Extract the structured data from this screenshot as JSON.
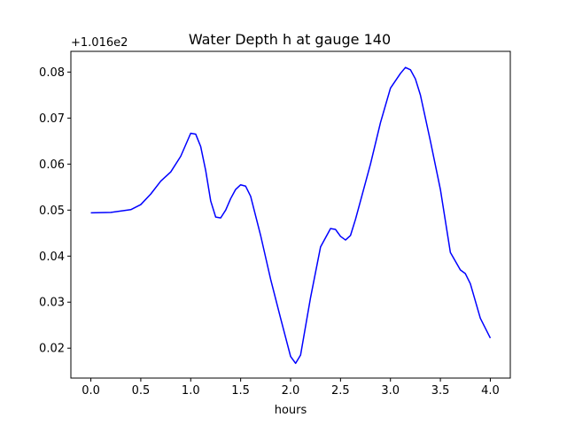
{
  "chart_data": {
    "type": "line",
    "title": "Water Depth h at gauge 140",
    "xlabel": "hours",
    "ylabel": "",
    "y_offset_label": "+1.016e2",
    "y_offset": 101.6,
    "xlim": [
      -0.2,
      4.2
    ],
    "ylim": [
      0.0135,
      0.0845
    ],
    "x_ticks": [
      0.0,
      0.5,
      1.0,
      1.5,
      2.0,
      2.5,
      3.0,
      3.5,
      4.0
    ],
    "x_tick_labels": [
      "0.0",
      "0.5",
      "1.0",
      "1.5",
      "2.0",
      "2.5",
      "3.0",
      "3.5",
      "4.0"
    ],
    "y_ticks": [
      0.02,
      0.03,
      0.04,
      0.05,
      0.06,
      0.07,
      0.08
    ],
    "y_tick_labels": [
      "0.02",
      "0.03",
      "0.04",
      "0.05",
      "0.06",
      "0.07",
      "0.08"
    ],
    "grid": false,
    "series": [
      {
        "color": "#0000ff",
        "x": [
          0.0,
          0.2,
          0.4,
          0.5,
          0.6,
          0.7,
          0.8,
          0.9,
          1.0,
          1.05,
          1.1,
          1.15,
          1.2,
          1.25,
          1.3,
          1.35,
          1.4,
          1.45,
          1.5,
          1.55,
          1.6,
          1.7,
          1.8,
          1.9,
          2.0,
          2.05,
          2.1,
          2.2,
          2.3,
          2.4,
          2.45,
          2.5,
          2.55,
          2.6,
          2.65,
          2.7,
          2.8,
          2.9,
          3.0,
          3.1,
          3.15,
          3.2,
          3.25,
          3.3,
          3.4,
          3.5,
          3.6,
          3.7,
          3.75,
          3.8,
          3.9,
          4.0
        ],
        "y": [
          0.0494,
          0.0495,
          0.0501,
          0.0512,
          0.0535,
          0.0563,
          0.0583,
          0.0617,
          0.0667,
          0.0665,
          0.0638,
          0.0586,
          0.052,
          0.0485,
          0.0483,
          0.05,
          0.0525,
          0.0545,
          0.0555,
          0.0552,
          0.053,
          0.0445,
          0.035,
          0.0265,
          0.0182,
          0.0167,
          0.0185,
          0.031,
          0.042,
          0.046,
          0.0458,
          0.0443,
          0.0435,
          0.0445,
          0.048,
          0.052,
          0.06,
          0.069,
          0.0765,
          0.0797,
          0.081,
          0.0805,
          0.0785,
          0.075,
          0.065,
          0.0545,
          0.0408,
          0.037,
          0.0362,
          0.034,
          0.0265,
          0.0222
        ]
      }
    ]
  }
}
